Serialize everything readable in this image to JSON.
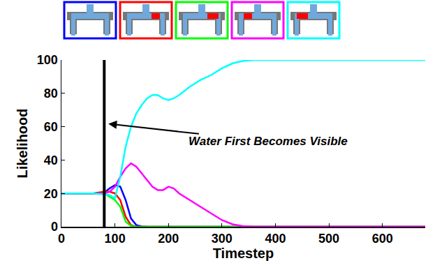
{
  "chart_data": {
    "type": "line",
    "x_label": "Timestep",
    "y_label": "Likelihood",
    "x": [
      0,
      20,
      40,
      60,
      80,
      90,
      100,
      110,
      120,
      130,
      140,
      150,
      160,
      170,
      180,
      190,
      200,
      210,
      220,
      240,
      260,
      280,
      300,
      320,
      340,
      360,
      400,
      450,
      500,
      550,
      600,
      650,
      680
    ],
    "series": [
      {
        "color": "#0000ff",
        "values": [
          20,
          20,
          20,
          20,
          20.5,
          23,
          25,
          24,
          16,
          5,
          1,
          0.2,
          0,
          0,
          0,
          0,
          0,
          0,
          0,
          0,
          0,
          0,
          0,
          0,
          0,
          0,
          0,
          0,
          0,
          0,
          0,
          0,
          0
        ]
      },
      {
        "color": "#ff0000",
        "values": [
          20,
          20,
          20,
          20,
          21,
          21,
          20,
          16,
          6,
          1,
          0,
          0,
          0,
          0,
          0,
          0,
          0,
          0,
          0,
          0,
          0,
          0,
          0,
          0,
          0,
          0,
          0,
          0,
          0,
          0,
          0,
          0,
          0
        ]
      },
      {
        "color": "#00ff00",
        "values": [
          20,
          20,
          20,
          20,
          20,
          18,
          16,
          12,
          3,
          0.5,
          0,
          0,
          0,
          0,
          0,
          0,
          0,
          0,
          0,
          0,
          0,
          0,
          0,
          0,
          0,
          0,
          0,
          0,
          0,
          0,
          0,
          0,
          0
        ]
      },
      {
        "color": "#ff00ff",
        "values": [
          20,
          20,
          20,
          20,
          20,
          21,
          24,
          30,
          35,
          38,
          36,
          32,
          28,
          24,
          22,
          22,
          24,
          23,
          20,
          16,
          12,
          8,
          4,
          1.5,
          0.3,
          0,
          0,
          0,
          0,
          0,
          0,
          0,
          0
        ]
      },
      {
        "color": "#00ffff",
        "values": [
          20,
          20,
          20,
          20,
          19.5,
          19,
          17,
          30,
          48,
          60,
          68,
          73,
          77,
          79,
          79,
          77,
          76,
          77,
          79,
          84,
          88,
          91,
          95,
          98,
          99.5,
          100,
          100,
          100,
          100,
          100,
          100,
          100,
          100
        ]
      }
    ],
    "vline": 80,
    "annotations": [
      {
        "text": "Water First Becomes Visible",
        "x": 80,
        "y": 62
      }
    ],
    "xlim": [
      0,
      680
    ],
    "xticks": [
      0,
      100,
      200,
      300,
      400,
      500,
      600
    ],
    "ylim": [
      0,
      100
    ],
    "yticks": [
      0,
      20,
      40,
      60,
      80,
      100
    ],
    "grid": false
  }
}
